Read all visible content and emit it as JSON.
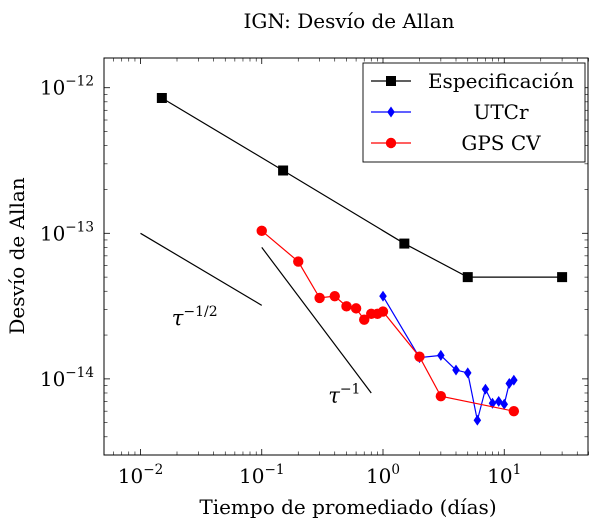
{
  "chart_data": {
    "type": "line",
    "title": "IGN: Desvío de Allan",
    "xlabel": "Tiempo de promediado (días)",
    "ylabel": "Desvío de Allan",
    "x_scale": "log",
    "y_scale": "log",
    "xlim": [
      0.005,
      50
    ],
    "ylim": [
      3e-15,
      1.6e-12
    ],
    "x_ticks": [
      {
        "value": 0.01,
        "base": "10",
        "exp": "−2"
      },
      {
        "value": 0.1,
        "base": "10",
        "exp": "−1"
      },
      {
        "value": 1,
        "base": "10",
        "exp": "0"
      },
      {
        "value": 10,
        "base": "10",
        "exp": "1"
      }
    ],
    "y_ticks": [
      {
        "value": 1e-14,
        "base": "10",
        "exp": "−14"
      },
      {
        "value": 1e-13,
        "base": "10",
        "exp": "−13"
      },
      {
        "value": 1e-12,
        "base": "10",
        "exp": "−12"
      }
    ],
    "legend_position": "top-right",
    "series": [
      {
        "name": "Especificación",
        "color": "#000000",
        "marker": "square",
        "x": [
          0.015,
          0.15,
          1.5,
          5,
          30
        ],
        "y": [
          8.5e-13,
          2.7e-13,
          8.5e-14,
          5e-14,
          5e-14
        ]
      },
      {
        "name": "UTCr",
        "color": "#0000ff",
        "marker": "diamond",
        "x": [
          1,
          2,
          3,
          4,
          5,
          6,
          7,
          8,
          9,
          10,
          11,
          12
        ],
        "y": [
          3.7e-14,
          1.4e-14,
          1.45e-14,
          1.15e-14,
          1.1e-14,
          5.2e-15,
          8.5e-15,
          6.8e-15,
          7e-15,
          6.7e-15,
          9.3e-15,
          9.8e-15
        ]
      },
      {
        "name": "GPS CV",
        "color": "#ff0000",
        "marker": "circle",
        "x": [
          0.1,
          0.2,
          0.3,
          0.4,
          0.5,
          0.6,
          0.7,
          0.8,
          0.9,
          1,
          2,
          3,
          12
        ],
        "y": [
          1.04e-13,
          6.4e-14,
          3.6e-14,
          3.7e-14,
          3.15e-14,
          3.05e-14,
          2.55e-14,
          2.8e-14,
          2.8e-14,
          2.9e-14,
          1.42e-14,
          7.6e-15,
          6e-15
        ]
      }
    ],
    "annotations": [
      {
        "base": "τ",
        "exp": "−1/2",
        "line_x": [
          0.01,
          0.1
        ],
        "line_y": [
          1e-13,
          3.2e-14
        ],
        "text_x": 0.028,
        "text_y": 2.35e-14
      },
      {
        "base": "τ",
        "exp": "−1",
        "line_x": [
          0.1,
          0.8
        ],
        "line_y": [
          8e-14,
          8e-15
        ],
        "text_x": 0.48,
        "text_y": 6.9e-15
      }
    ]
  }
}
